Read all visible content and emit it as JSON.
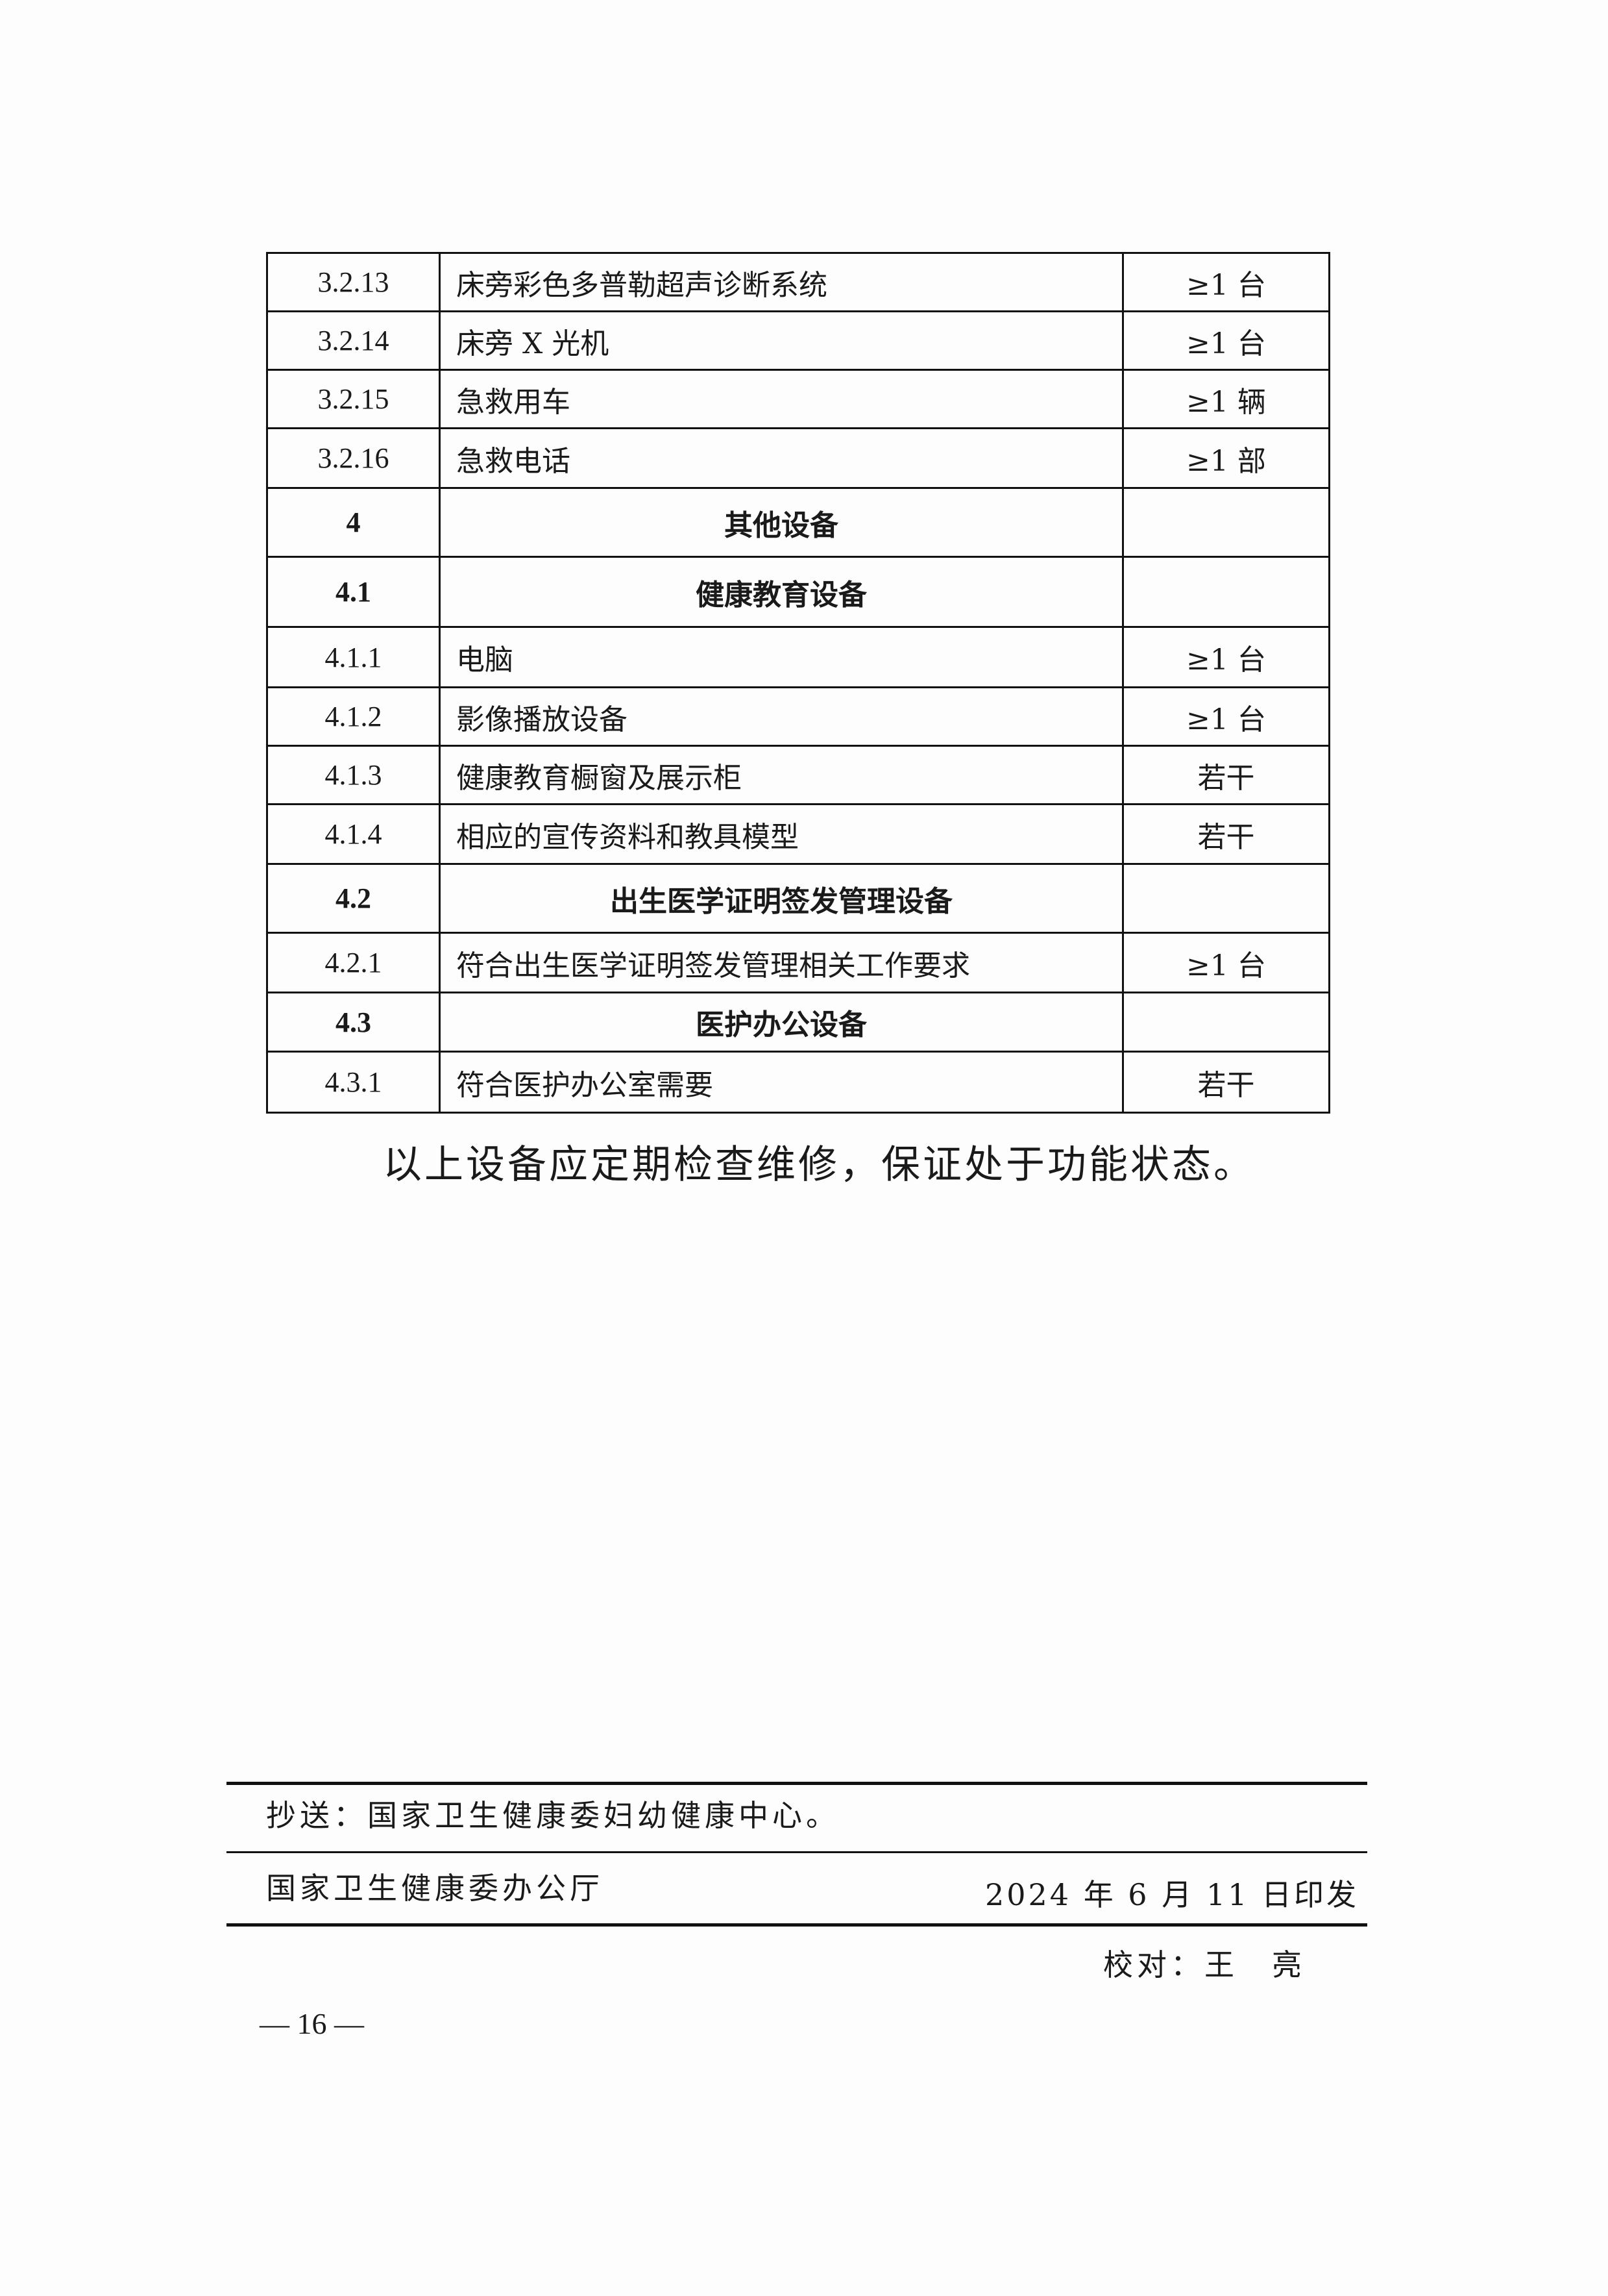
{
  "table": {
    "rows": [
      {
        "num": "3.2.13",
        "name": "床旁彩色多普勒超声诊断系统",
        "qty": "≥1 台",
        "heading": false
      },
      {
        "num": "3.2.14",
        "name": "床旁 X 光机",
        "qty": "≥1 台",
        "heading": false
      },
      {
        "num": "3.2.15",
        "name": "急救用车",
        "qty": "≥1 辆",
        "heading": false
      },
      {
        "num": "3.2.16",
        "name": "急救电话",
        "qty": "≥1 部",
        "heading": false
      },
      {
        "num": "4",
        "name": "其他设备",
        "qty": "",
        "heading": true
      },
      {
        "num": "4.1",
        "name": "健康教育设备",
        "qty": "",
        "heading": true
      },
      {
        "num": "4.1.1",
        "name": "电脑",
        "qty": "≥1 台",
        "heading": false
      },
      {
        "num": "4.1.2",
        "name": "影像播放设备",
        "qty": "≥1 台",
        "heading": false
      },
      {
        "num": "4.1.3",
        "name": "健康教育橱窗及展示柜",
        "qty": "若干",
        "heading": false
      },
      {
        "num": "4.1.4",
        "name": "相应的宣传资料和教具模型",
        "qty": "若干",
        "heading": false
      },
      {
        "num": "4.2",
        "name": "出生医学证明签发管理设备",
        "qty": "",
        "heading": true
      },
      {
        "num": "4.2.1",
        "name": "符合出生医学证明签发管理相关工作要求",
        "qty": "≥1 台",
        "heading": false
      },
      {
        "num": "4.3",
        "name": "医护办公设备",
        "qty": "",
        "heading": true
      },
      {
        "num": "4.3.1",
        "name": "符合医护办公室需要",
        "qty": "若干",
        "heading": false
      }
    ]
  },
  "note": "以上设备应定期检查维修，保证处于功能状态。",
  "footer": {
    "cc": "抄送：国家卫生健康委妇幼健康中心。",
    "issuer": "国家卫生健康委办公厅",
    "date": "2024 年 6 月 11 日印发",
    "proofreader": "校对：王　亮"
  },
  "page_number": "— 16 —"
}
